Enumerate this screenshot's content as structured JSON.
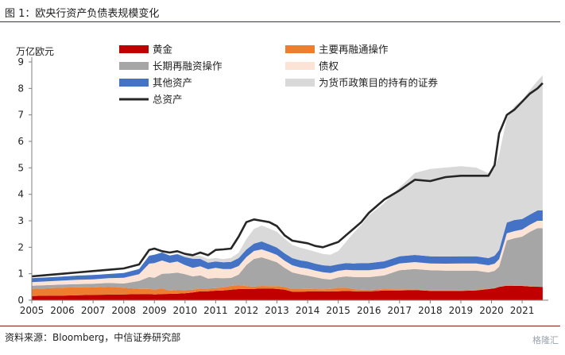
{
  "figure": {
    "title": "图 1：欧央行资产负债表规模变化",
    "source": "资料来源：Bloomberg，中信证券研究部",
    "watermark": "格隆汇"
  },
  "chart_data": {
    "type": "area",
    "ylabel": "万亿欧元",
    "ylim": [
      0,
      9
    ],
    "yticks": [
      0,
      1,
      2,
      3,
      4,
      5,
      6,
      7,
      8,
      9
    ],
    "xlim": [
      2005,
      2021.75
    ],
    "xticks": [
      2005,
      2006,
      2007,
      2008,
      2009,
      2010,
      2011,
      2012,
      2013,
      2014,
      2015,
      2016,
      2017,
      2018,
      2019,
      2020,
      2021
    ],
    "xticklabels": [
      "2005",
      "2006",
      "2007",
      "2008",
      "2009",
      "2010",
      "2011",
      "2012",
      "2013",
      "2014",
      "2015",
      "2016",
      "2017",
      "2018",
      "2019",
      "2020",
      "2021"
    ],
    "grid": false,
    "legend_position": "top",
    "x": [
      2005.0,
      2005.5,
      2006.0,
      2006.5,
      2007.0,
      2007.5,
      2008.0,
      2008.5,
      2008.83,
      2009.0,
      2009.25,
      2009.5,
      2009.75,
      2010.0,
      2010.25,
      2010.5,
      2010.75,
      2011.0,
      2011.25,
      2011.5,
      2011.75,
      2012.0,
      2012.25,
      2012.5,
      2012.75,
      2013.0,
      2013.25,
      2013.5,
      2013.75,
      2014.0,
      2014.25,
      2014.5,
      2014.75,
      2015.0,
      2015.25,
      2015.5,
      2015.75,
      2016.0,
      2016.5,
      2017.0,
      2017.5,
      2018.0,
      2018.5,
      2019.0,
      2019.5,
      2019.9,
      2020.1,
      2020.25,
      2020.5,
      2020.75,
      2021.0,
      2021.25,
      2021.5,
      2021.67
    ],
    "series": [
      {
        "name": "黄金",
        "color": "#c00000",
        "values": [
          0.16,
          0.17,
          0.17,
          0.19,
          0.2,
          0.21,
          0.22,
          0.23,
          0.23,
          0.22,
          0.23,
          0.24,
          0.25,
          0.26,
          0.29,
          0.34,
          0.34,
          0.36,
          0.37,
          0.4,
          0.42,
          0.43,
          0.43,
          0.44,
          0.44,
          0.43,
          0.4,
          0.32,
          0.32,
          0.33,
          0.33,
          0.33,
          0.34,
          0.34,
          0.35,
          0.34,
          0.33,
          0.33,
          0.37,
          0.37,
          0.38,
          0.35,
          0.35,
          0.35,
          0.37,
          0.42,
          0.45,
          0.5,
          0.55,
          0.54,
          0.54,
          0.52,
          0.51,
          0.5
        ]
      },
      {
        "name": "主要再融通操作",
        "color": "#ed7d31",
        "values": [
          0.27,
          0.28,
          0.3,
          0.3,
          0.28,
          0.3,
          0.25,
          0.2,
          0.2,
          0.18,
          0.22,
          0.12,
          0.14,
          0.12,
          0.11,
          0.1,
          0.1,
          0.1,
          0.12,
          0.14,
          0.15,
          0.1,
          0.08,
          0.1,
          0.09,
          0.1,
          0.1,
          0.1,
          0.1,
          0.1,
          0.09,
          0.08,
          0.09,
          0.13,
          0.12,
          0.08,
          0.07,
          0.06,
          0.05,
          0.04,
          0.03,
          0.02,
          0.02,
          0.02,
          0.02,
          0.02,
          0.01,
          0.01,
          0.01,
          0.01,
          0.01,
          0.01,
          0.01,
          0.01
        ]
      },
      {
        "name": "长期再融资操作",
        "color": "#a6a6a6",
        "values": [
          0.12,
          0.12,
          0.12,
          0.12,
          0.14,
          0.14,
          0.16,
          0.3,
          0.45,
          0.45,
          0.55,
          0.65,
          0.65,
          0.6,
          0.5,
          0.5,
          0.38,
          0.38,
          0.34,
          0.3,
          0.4,
          0.8,
          1.05,
          1.08,
          1.0,
          0.9,
          0.72,
          0.63,
          0.56,
          0.5,
          0.45,
          0.4,
          0.35,
          0.39,
          0.43,
          0.46,
          0.47,
          0.48,
          0.52,
          0.72,
          0.77,
          0.76,
          0.75,
          0.75,
          0.73,
          0.61,
          0.65,
          0.76,
          1.7,
          1.79,
          1.85,
          2.05,
          2.2,
          2.21
        ]
      },
      {
        "name": "债权",
        "color": "#fbe4d5",
        "values": [
          0.13,
          0.14,
          0.15,
          0.16,
          0.17,
          0.18,
          0.22,
          0.25,
          0.5,
          0.55,
          0.5,
          0.4,
          0.42,
          0.35,
          0.32,
          0.34,
          0.35,
          0.38,
          0.35,
          0.34,
          0.32,
          0.3,
          0.3,
          0.3,
          0.29,
          0.28,
          0.27,
          0.27,
          0.26,
          0.26,
          0.25,
          0.25,
          0.25,
          0.25,
          0.25,
          0.25,
          0.26,
          0.26,
          0.26,
          0.26,
          0.26,
          0.26,
          0.26,
          0.27,
          0.27,
          0.27,
          0.27,
          0.28,
          0.27,
          0.27,
          0.27,
          0.27,
          0.28,
          0.28
        ]
      },
      {
        "name": "其他资产",
        "color": "#4472c4",
        "values": [
          0.15,
          0.15,
          0.15,
          0.16,
          0.16,
          0.16,
          0.18,
          0.2,
          0.3,
          0.32,
          0.3,
          0.28,
          0.28,
          0.3,
          0.35,
          0.28,
          0.25,
          0.24,
          0.25,
          0.27,
          0.3,
          0.28,
          0.28,
          0.3,
          0.29,
          0.28,
          0.28,
          0.27,
          0.27,
          0.27,
          0.26,
          0.26,
          0.27,
          0.25,
          0.25,
          0.26,
          0.27,
          0.27,
          0.27,
          0.27,
          0.27,
          0.27,
          0.27,
          0.27,
          0.27,
          0.27,
          0.3,
          0.35,
          0.4,
          0.42,
          0.4,
          0.38,
          0.39,
          0.4
        ]
      },
      {
        "name": "为货币政策目的持有的证券",
        "color": "#d9d9d9",
        "values": [
          0.0,
          0.0,
          0.0,
          0.0,
          0.0,
          0.0,
          0.0,
          0.0,
          0.0,
          0.0,
          0.0,
          0.0,
          0.02,
          0.05,
          0.1,
          0.12,
          0.14,
          0.14,
          0.12,
          0.15,
          0.2,
          0.4,
          0.55,
          0.6,
          0.6,
          0.6,
          0.55,
          0.5,
          0.48,
          0.45,
          0.45,
          0.43,
          0.42,
          0.5,
          0.8,
          1.15,
          1.45,
          1.8,
          2.2,
          2.6,
          3.1,
          3.3,
          3.36,
          3.4,
          3.35,
          3.2,
          3.3,
          3.6,
          3.95,
          4.3,
          4.5,
          4.7,
          4.9,
          5.1
        ]
      },
      {
        "name": "总资产",
        "color": "#262626",
        "line": true,
        "values": [
          0.9,
          0.95,
          1.0,
          1.05,
          1.1,
          1.15,
          1.2,
          1.35,
          1.9,
          1.95,
          1.85,
          1.8,
          1.85,
          1.75,
          1.7,
          1.8,
          1.7,
          1.9,
          1.92,
          1.95,
          2.4,
          2.95,
          3.05,
          3.0,
          2.95,
          2.8,
          2.45,
          2.25,
          2.2,
          2.15,
          2.05,
          2.0,
          2.1,
          2.2,
          2.45,
          2.7,
          2.95,
          3.3,
          3.8,
          4.15,
          4.55,
          4.5,
          4.65,
          4.7,
          4.7,
          4.7,
          5.1,
          6.3,
          7.0,
          7.2,
          7.5,
          7.8,
          8.0,
          8.2
        ]
      }
    ],
    "legend": [
      {
        "label": "黄金",
        "color": "#c00000",
        "kind": "box"
      },
      {
        "label": "主要再融通操作",
        "color": "#ed7d31",
        "kind": "box"
      },
      {
        "label": "长期再融资操作",
        "color": "#a6a6a6",
        "kind": "box"
      },
      {
        "label": "债权",
        "color": "#fbe4d5",
        "kind": "box"
      },
      {
        "label": "其他资产",
        "color": "#4472c4",
        "kind": "box"
      },
      {
        "label": "为货币政策目的持有的证券",
        "color": "#d9d9d9",
        "kind": "box"
      },
      {
        "label": "总资产",
        "color": "#262626",
        "kind": "line"
      }
    ]
  }
}
